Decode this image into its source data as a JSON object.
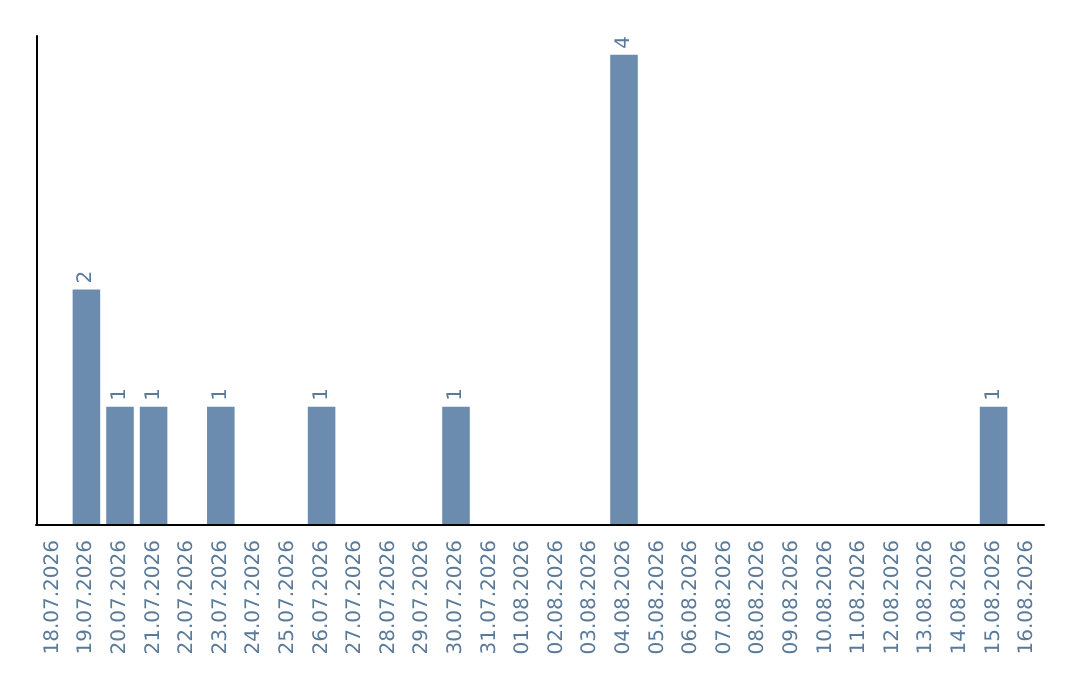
{
  "chart_data": {
    "type": "bar",
    "categories": [
      "18.07.2026",
      "19.07.2026",
      "20.07.2026",
      "21.07.2026",
      "22.07.2026",
      "23.07.2026",
      "24.07.2026",
      "25.07.2026",
      "26.07.2026",
      "27.07.2026",
      "28.07.2026",
      "29.07.2026",
      "30.07.2026",
      "31.07.2026",
      "01.08.2026",
      "02.08.2026",
      "03.08.2026",
      "04.08.2026",
      "05.08.2026",
      "06.08.2026",
      "07.08.2026",
      "08.08.2026",
      "09.08.2026",
      "10.08.2026",
      "11.08.2026",
      "12.08.2026",
      "13.08.2026",
      "14.08.2026",
      "15.08.2026",
      "16.08.2026"
    ],
    "values": [
      0,
      2,
      1,
      1,
      0,
      1,
      0,
      0,
      1,
      0,
      0,
      0,
      1,
      0,
      0,
      0,
      0,
      4,
      0,
      0,
      0,
      0,
      0,
      0,
      0,
      0,
      0,
      0,
      1,
      0
    ],
    "value_labels": [
      null,
      "2",
      "1",
      "1",
      null,
      "1",
      null,
      null,
      "1",
      null,
      null,
      null,
      "1",
      null,
      null,
      null,
      null,
      "4",
      null,
      null,
      null,
      null,
      null,
      null,
      null,
      null,
      null,
      null,
      "1",
      null
    ],
    "color": "#6b8cae",
    "grid": false,
    "tick_labels": "x"
  }
}
